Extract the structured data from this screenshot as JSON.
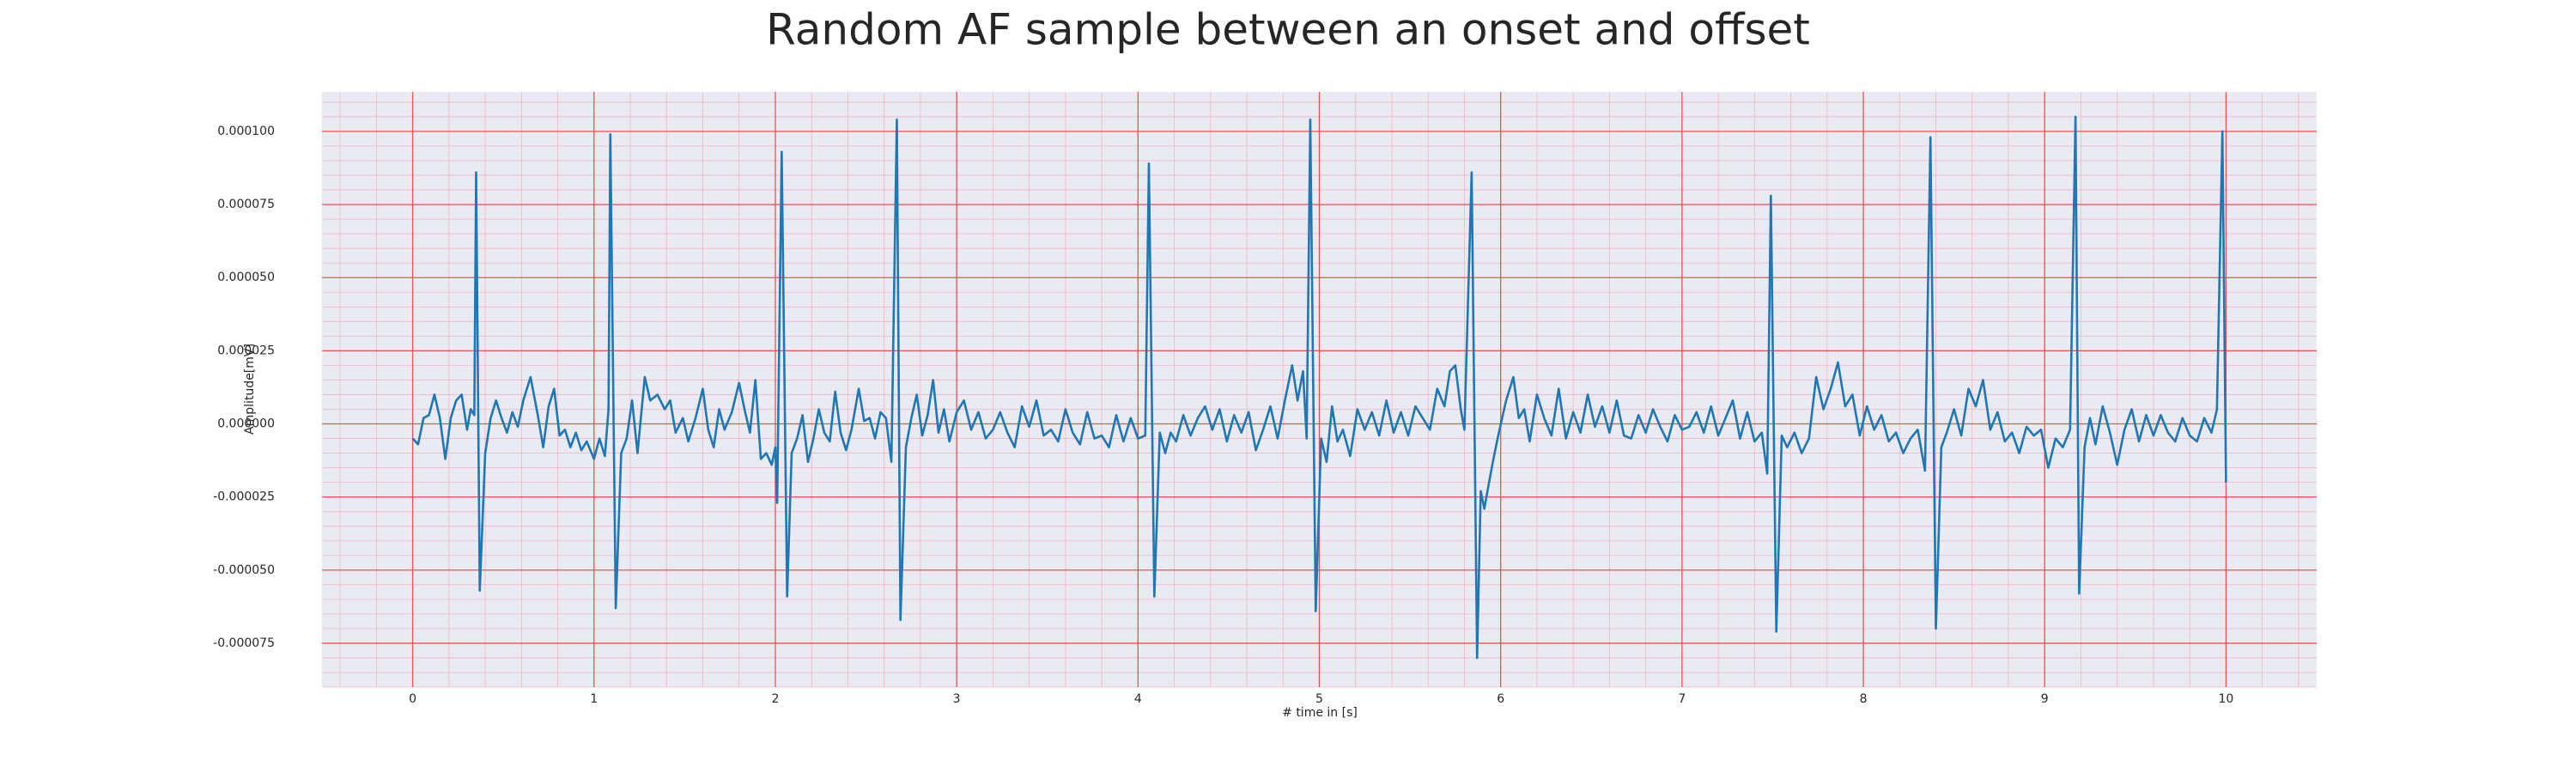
{
  "chart_data": {
    "type": "line",
    "title": "Random AF sample between an onset and offset",
    "xlabel": "# time in [s]",
    "ylabel": "Amplitude[mV]",
    "color": "#1f77b4",
    "grid": true,
    "minor_grid": true,
    "xlim": [
      -0.5,
      10.5
    ],
    "xticks": [
      0,
      1,
      2,
      3,
      4,
      5,
      6,
      7,
      8,
      9,
      10
    ],
    "ylim": [
      -9e-05,
      0.0001135
    ],
    "yticks": [
      {
        "value": -7.5e-05,
        "label": "-0.000075"
      },
      {
        "value": -5e-05,
        "label": "-0.000050"
      },
      {
        "value": -2.5e-05,
        "label": "-0.000025"
      },
      {
        "value": 0,
        "label": "0.000000"
      },
      {
        "value": 2.5e-05,
        "label": "0.000025"
      },
      {
        "value": 5e-05,
        "label": "0.000050"
      },
      {
        "value": 7.5e-05,
        "label": "0.000075"
      },
      {
        "value": 0.0001,
        "label": "0.000100"
      }
    ],
    "x": [
      0,
      0.03,
      0.06,
      0.09,
      0.12,
      0.15,
      0.18,
      0.21,
      0.24,
      0.27,
      0.3,
      0.32,
      0.34,
      0.35,
      0.37,
      0.4,
      0.43,
      0.46,
      0.49,
      0.52,
      0.55,
      0.58,
      0.61,
      0.65,
      0.69,
      0.72,
      0.75,
      0.78,
      0.81,
      0.84,
      0.87,
      0.9,
      0.93,
      0.96,
      1.0,
      1.03,
      1.06,
      1.08,
      1.09,
      1.12,
      1.15,
      1.18,
      1.21,
      1.24,
      1.28,
      1.31,
      1.35,
      1.39,
      1.42,
      1.45,
      1.49,
      1.52,
      1.56,
      1.6,
      1.63,
      1.66,
      1.69,
      1.72,
      1.76,
      1.8,
      1.83,
      1.86,
      1.89,
      1.92,
      1.95,
      1.98,
      2.0,
      2.01,
      2.035,
      2.065,
      2.09,
      2.12,
      2.15,
      2.18,
      2.21,
      2.24,
      2.27,
      2.3,
      2.33,
      2.36,
      2.39,
      2.42,
      2.46,
      2.49,
      2.52,
      2.55,
      2.58,
      2.61,
      2.64,
      2.67,
      2.69,
      2.72,
      2.75,
      2.78,
      2.81,
      2.84,
      2.87,
      2.9,
      2.93,
      2.96,
      3.0,
      3.04,
      3.08,
      3.12,
      3.16,
      3.2,
      3.24,
      3.28,
      3.32,
      3.36,
      3.4,
      3.44,
      3.48,
      3.52,
      3.56,
      3.6,
      3.64,
      3.68,
      3.72,
      3.76,
      3.8,
      3.84,
      3.88,
      3.92,
      3.96,
      4.0,
      4.04,
      4.06,
      4.09,
      4.12,
      4.15,
      4.18,
      4.21,
      4.25,
      4.29,
      4.33,
      4.37,
      4.41,
      4.45,
      4.49,
      4.53,
      4.57,
      4.61,
      4.65,
      4.69,
      4.73,
      4.77,
      4.81,
      4.85,
      4.88,
      4.91,
      4.93,
      4.95,
      4.98,
      5.01,
      5.04,
      5.07,
      5.1,
      5.13,
      5.17,
      5.21,
      5.25,
      5.29,
      5.33,
      5.37,
      5.41,
      5.45,
      5.49,
      5.53,
      5.57,
      5.61,
      5.65,
      5.69,
      5.72,
      5.75,
      5.78,
      5.8,
      5.84,
      5.87,
      5.89,
      5.91,
      5.93,
      5.96,
      5.99,
      6.03,
      6.07,
      6.1,
      6.13,
      6.16,
      6.2,
      6.24,
      6.28,
      6.32,
      6.36,
      6.4,
      6.44,
      6.48,
      6.52,
      6.56,
      6.6,
      6.64,
      6.68,
      6.72,
      6.76,
      6.8,
      6.84,
      6.88,
      6.92,
      6.96,
      7.0,
      7.04,
      7.08,
      7.12,
      7.16,
      7.2,
      7.24,
      7.28,
      7.32,
      7.36,
      7.4,
      7.44,
      7.47,
      7.49,
      7.52,
      7.55,
      7.58,
      7.62,
      7.66,
      7.7,
      7.74,
      7.78,
      7.82,
      7.86,
      7.9,
      7.94,
      7.98,
      8.02,
      8.06,
      8.1,
      8.14,
      8.18,
      8.22,
      8.26,
      8.3,
      8.34,
      8.37,
      8.4,
      8.43,
      8.46,
      8.5,
      8.54,
      8.58,
      8.62,
      8.66,
      8.7,
      8.74,
      8.78,
      8.82,
      8.86,
      8.9,
      8.94,
      8.98,
      9.02,
      9.06,
      9.1,
      9.14,
      9.17,
      9.19,
      9.22,
      9.25,
      9.28,
      9.32,
      9.36,
      9.4,
      9.44,
      9.48,
      9.52,
      9.56,
      9.6,
      9.64,
      9.68,
      9.72,
      9.76,
      9.8,
      9.84,
      9.88,
      9.92,
      9.95,
      9.98,
      10.0
    ],
    "values": [
      -5e-06,
      -7e-06,
      2e-06,
      3e-06,
      1e-05,
      2e-06,
      -1.2e-05,
      2e-06,
      8e-06,
      1e-05,
      -2e-06,
      5e-06,
      3e-06,
      8.6e-05,
      -5.7e-05,
      -1e-05,
      2e-06,
      8e-06,
      2e-06,
      -3e-06,
      4e-06,
      -1e-06,
      8e-06,
      1.6e-05,
      3e-06,
      -8e-06,
      6e-06,
      1.2e-05,
      -4e-06,
      -2e-06,
      -8e-06,
      -3e-06,
      -9e-06,
      -6e-06,
      -1.2e-05,
      -5e-06,
      -1.1e-05,
      5e-06,
      9.9e-05,
      -6.3e-05,
      -1e-05,
      -5e-06,
      8e-06,
      -1e-05,
      1.6e-05,
      8e-06,
      1e-05,
      5e-06,
      8e-06,
      -3e-06,
      2e-06,
      -6e-06,
      2e-06,
      1.2e-05,
      -2e-06,
      -8e-06,
      5e-06,
      -2e-06,
      4e-06,
      1.4e-05,
      5e-06,
      -3e-06,
      1.5e-05,
      -1.2e-05,
      -1e-05,
      -1.4e-05,
      -8e-06,
      -2.7e-05,
      9.3e-05,
      -5.9e-05,
      -1e-05,
      -5e-06,
      3e-06,
      -1.3e-05,
      -5e-06,
      5e-06,
      -3e-06,
      -6e-06,
      1.1e-05,
      -3e-06,
      -9e-06,
      -2e-06,
      1.2e-05,
      1e-06,
      2e-06,
      -5e-06,
      4e-06,
      2e-06,
      -1.3e-05,
      0.000104,
      -6.7e-05,
      -8e-06,
      2e-06,
      1e-05,
      -4e-06,
      3e-06,
      1.5e-05,
      -3e-06,
      5e-06,
      -6e-06,
      4e-06,
      8e-06,
      -2e-06,
      4e-06,
      -5e-06,
      -2e-06,
      4e-06,
      -3e-06,
      -8e-06,
      6e-06,
      -1e-06,
      8e-06,
      -4e-06,
      -2e-06,
      -6e-06,
      5e-06,
      -3e-06,
      -7e-06,
      4e-06,
      -5e-06,
      -4e-06,
      -8e-06,
      3e-06,
      -6e-06,
      2e-06,
      -5e-06,
      -4e-06,
      8.9e-05,
      -5.9e-05,
      -3e-06,
      -1e-05,
      -3e-06,
      -6e-06,
      3e-06,
      -4e-06,
      2e-06,
      6e-06,
      -2e-06,
      5e-06,
      -6e-06,
      3e-06,
      -3e-06,
      4e-06,
      -9e-06,
      -2e-06,
      6e-06,
      -5e-06,
      8e-06,
      2e-05,
      8e-06,
      1.8e-05,
      -5e-06,
      0.000104,
      -6.4e-05,
      -5e-06,
      -1.3e-05,
      6e-06,
      -6e-06,
      -2e-06,
      -1.1e-05,
      5e-06,
      -2e-06,
      4e-06,
      -4e-06,
      8e-06,
      -3e-06,
      4e-06,
      -4e-06,
      6e-06,
      2e-06,
      -2e-06,
      1.2e-05,
      6e-06,
      1.8e-05,
      2e-05,
      5e-06,
      -2e-06,
      8.6e-05,
      -8e-05,
      -2.3e-05,
      -2.9e-05,
      -2.2e-05,
      -1.2e-05,
      -3e-06,
      8e-06,
      1.6e-05,
      2e-06,
      5e-06,
      -6e-06,
      1e-05,
      2e-06,
      -4e-06,
      1.2e-05,
      -5e-06,
      4e-06,
      -3e-06,
      1e-05,
      -1e-06,
      6e-06,
      -3e-06,
      8e-06,
      -4e-06,
      -5e-06,
      3e-06,
      -3e-06,
      5e-06,
      -1e-06,
      -6e-06,
      3e-06,
      -2e-06,
      -1e-06,
      4e-06,
      -3e-06,
      6e-06,
      -4e-06,
      2e-06,
      8e-06,
      -5e-06,
      4e-06,
      -6e-06,
      -3e-06,
      -1.7e-05,
      7.8e-05,
      -7.1e-05,
      -4e-06,
      -8e-06,
      -3e-06,
      -1e-05,
      -5e-06,
      1.6e-05,
      5e-06,
      1.2e-05,
      2.1e-05,
      6e-06,
      1e-05,
      -4e-06,
      6e-06,
      -2e-06,
      3e-06,
      -6e-06,
      -3e-06,
      -1e-05,
      -5e-06,
      -2e-06,
      -1.6e-05,
      9.8e-05,
      -7e-05,
      -8e-06,
      -3e-06,
      5e-06,
      -4e-06,
      1.2e-05,
      6e-06,
      1.5e-05,
      -2e-06,
      4e-06,
      -6e-06,
      -3e-06,
      -1e-05,
      -1e-06,
      -4e-06,
      -2e-06,
      -1.5e-05,
      -5e-06,
      -8e-06,
      -2e-06,
      0.000105,
      -5.8e-05,
      -8e-06,
      2e-06,
      -7e-06,
      6e-06,
      -3e-06,
      -1.4e-05,
      -2e-06,
      5e-06,
      -6e-06,
      3e-06,
      -4e-06,
      3e-06,
      -3e-06,
      -6e-06,
      2e-06,
      -4e-06,
      -6e-06,
      2e-06,
      -3e-06,
      5e-06,
      0.0001,
      -2e-05
    ]
  }
}
